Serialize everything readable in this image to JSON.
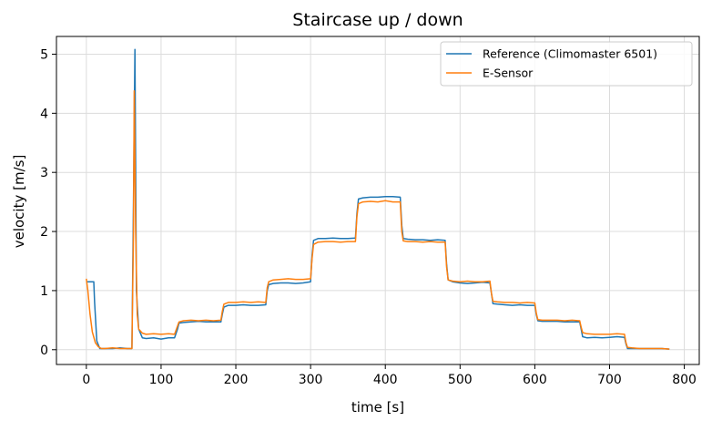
{
  "chart_data": {
    "type": "line",
    "title": "Staircase up / down",
    "xlabel": "time [s]",
    "ylabel": "velocity [m/s]",
    "xlim": [
      -40,
      820
    ],
    "ylim": [
      -0.25,
      5.3
    ],
    "x_ticks": [
      0,
      100,
      200,
      300,
      400,
      500,
      600,
      700,
      800
    ],
    "y_ticks": [
      0,
      1,
      2,
      3,
      4,
      5
    ],
    "grid": true,
    "legend_position": "upper right",
    "series": [
      {
        "name": "Reference (Climomaster 6501)",
        "color": "#1f77b4",
        "x": [
          0,
          10,
          11,
          14,
          18,
          25,
          35,
          45,
          55,
          61,
          63,
          65,
          67,
          70,
          75,
          80,
          90,
          100,
          110,
          118,
          122,
          124,
          130,
          140,
          150,
          160,
          170,
          180,
          182,
          184,
          190,
          200,
          210,
          220,
          230,
          240,
          242,
          244,
          250,
          260,
          270,
          280,
          290,
          300,
          302,
          304,
          310,
          320,
          330,
          340,
          350,
          360,
          362,
          364,
          370,
          380,
          390,
          400,
          410,
          420,
          422,
          424,
          430,
          440,
          450,
          460,
          470,
          480,
          482,
          484,
          490,
          500,
          510,
          520,
          530,
          540,
          542,
          544,
          550,
          560,
          570,
          580,
          590,
          600,
          602,
          604,
          610,
          620,
          630,
          640,
          650,
          660,
          662,
          664,
          670,
          680,
          690,
          700,
          710,
          720,
          722,
          724,
          730,
          740,
          750,
          760,
          770,
          780
        ],
        "y": [
          1.15,
          1.15,
          0.8,
          0.15,
          0.02,
          0.02,
          0.02,
          0.03,
          0.02,
          0.02,
          2.5,
          5.08,
          1.0,
          0.35,
          0.2,
          0.19,
          0.2,
          0.18,
          0.2,
          0.2,
          0.35,
          0.45,
          0.46,
          0.47,
          0.48,
          0.47,
          0.47,
          0.47,
          0.6,
          0.72,
          0.75,
          0.75,
          0.76,
          0.75,
          0.75,
          0.76,
          1.0,
          1.1,
          1.12,
          1.13,
          1.13,
          1.12,
          1.13,
          1.15,
          1.6,
          1.85,
          1.88,
          1.88,
          1.89,
          1.88,
          1.88,
          1.89,
          2.3,
          2.55,
          2.57,
          2.58,
          2.58,
          2.59,
          2.59,
          2.58,
          2.1,
          1.88,
          1.87,
          1.86,
          1.86,
          1.85,
          1.86,
          1.85,
          1.45,
          1.18,
          1.15,
          1.13,
          1.12,
          1.13,
          1.14,
          1.13,
          0.95,
          0.78,
          0.77,
          0.76,
          0.75,
          0.76,
          0.75,
          0.75,
          0.6,
          0.49,
          0.48,
          0.48,
          0.48,
          0.47,
          0.47,
          0.47,
          0.35,
          0.22,
          0.2,
          0.21,
          0.2,
          0.21,
          0.22,
          0.21,
          0.1,
          0.02,
          0.02,
          0.02,
          0.02,
          0.02,
          0.02,
          0.01
        ]
      },
      {
        "name": "E-Sensor",
        "color": "#ff7f0e",
        "x": [
          0,
          2,
          5,
          8,
          12,
          16,
          20,
          25,
          35,
          45,
          55,
          61,
          63,
          64,
          66,
          68,
          70,
          75,
          80,
          90,
          100,
          110,
          118,
          122,
          124,
          130,
          140,
          150,
          160,
          170,
          180,
          182,
          184,
          190,
          200,
          210,
          220,
          230,
          240,
          242,
          244,
          250,
          260,
          270,
          280,
          290,
          300,
          302,
          304,
          310,
          320,
          330,
          340,
          350,
          360,
          362,
          364,
          370,
          380,
          390,
          400,
          410,
          420,
          422,
          424,
          430,
          440,
          450,
          460,
          470,
          480,
          482,
          484,
          490,
          500,
          510,
          520,
          530,
          540,
          542,
          544,
          550,
          560,
          570,
          580,
          590,
          600,
          602,
          604,
          610,
          620,
          630,
          640,
          650,
          660,
          662,
          664,
          670,
          680,
          690,
          700,
          710,
          720,
          722,
          724,
          730,
          740,
          750,
          760,
          770,
          780
        ],
        "y": [
          1.2,
          1.0,
          0.6,
          0.3,
          0.12,
          0.05,
          0.02,
          0.02,
          0.03,
          0.02,
          0.02,
          0.02,
          2.0,
          4.38,
          2.0,
          0.6,
          0.35,
          0.28,
          0.26,
          0.27,
          0.26,
          0.27,
          0.26,
          0.4,
          0.47,
          0.49,
          0.5,
          0.49,
          0.5,
          0.49,
          0.5,
          0.65,
          0.77,
          0.8,
          0.8,
          0.81,
          0.8,
          0.81,
          0.8,
          1.05,
          1.15,
          1.18,
          1.19,
          1.2,
          1.19,
          1.19,
          1.2,
          1.55,
          1.78,
          1.82,
          1.83,
          1.83,
          1.82,
          1.83,
          1.83,
          2.25,
          2.47,
          2.5,
          2.51,
          2.5,
          2.52,
          2.5,
          2.5,
          2.0,
          1.84,
          1.83,
          1.83,
          1.82,
          1.83,
          1.82,
          1.82,
          1.4,
          1.18,
          1.16,
          1.15,
          1.16,
          1.15,
          1.15,
          1.16,
          0.95,
          0.82,
          0.81,
          0.8,
          0.8,
          0.79,
          0.8,
          0.79,
          0.62,
          0.51,
          0.5,
          0.5,
          0.5,
          0.49,
          0.5,
          0.49,
          0.38,
          0.29,
          0.27,
          0.26,
          0.26,
          0.26,
          0.27,
          0.26,
          0.12,
          0.04,
          0.03,
          0.02,
          0.02,
          0.02,
          0.02,
          0.01
        ]
      }
    ]
  }
}
